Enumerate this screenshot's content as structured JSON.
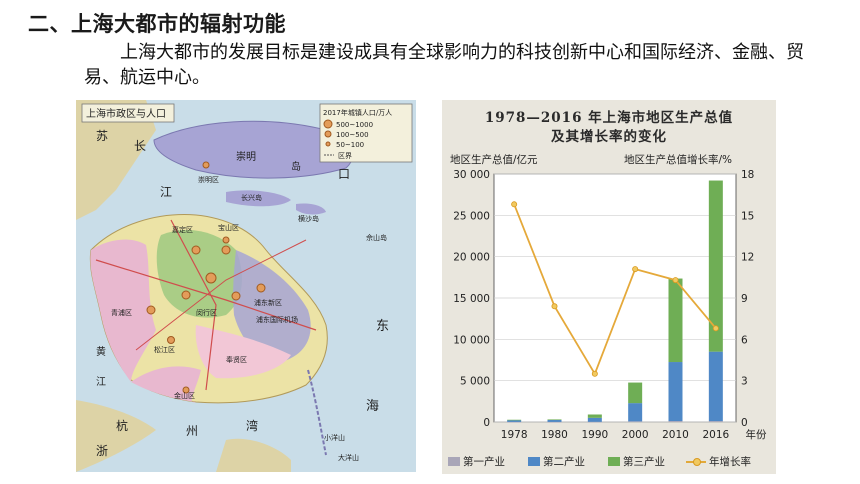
{
  "section": {
    "heading": "二、上海大都市的辐射功能",
    "paragraph": "上海大都市的发展目标是建设成具有全球影响力的科技创新中心和国际经济、金融、贸易、航运中心。"
  },
  "map": {
    "title": "上海市政区与人口",
    "legend": {
      "title": "2017年城镇人口/万人",
      "items": [
        "500~1000",
        "100~500",
        "50~100"
      ],
      "boundary": "区界"
    },
    "colors": {
      "water": "#c9dde8",
      "land": "#ece3a6",
      "pink": "#e8b8cf",
      "green": "#aacd86",
      "purple": "#a7a4d4",
      "city": "#e39c5a"
    },
    "labels": {
      "changxing": "长兴岛",
      "chongming": "崇明",
      "jiangdi": "江",
      "island": "岛",
      "jiading": "嘉定区",
      "baoshan": "宝山区",
      "qingpu": "青浦区",
      "songjiang": "松江区",
      "minhang": "闵行区",
      "pudong": "浦东新区",
      "pudong_airport": "浦东国际机场",
      "fengxian": "奉贤区",
      "jinshan": "金山区",
      "hengsha": "横沙岛",
      "chongming_city": "崇明区",
      "huang": "黄",
      "jiang": "江",
      "sea": "海",
      "sea2": "海",
      "east": "东",
      "hang": "杭",
      "zhou": "州",
      "wan": "湾",
      "changjiang": "长",
      "xiaoyangshan": "小洋山",
      "dayangshan": "大洋山",
      "sheshan": "佘山岛",
      "mouth": "口",
      "yang": "洋",
      "jiangsu": "苏",
      "zhe": "浙",
      "river": "江"
    }
  },
  "chart_data": {
    "type": "bar",
    "title": "1978—2016 年上海市地区生产总值",
    "subtitle": "及其增长率的变化",
    "ylabel": "地区生产总值/亿元",
    "y2label": "地区生产总值增长率/%",
    "xlabel": "年份",
    "categories": [
      "1978",
      "1980",
      "1990",
      "2000",
      "2010",
      "2016"
    ],
    "ylim": [
      0,
      30000
    ],
    "y2lim": [
      0,
      18
    ],
    "yticks": [
      "30 000",
      "25 000",
      "20 000",
      "15 000",
      "10 000",
      "5 000",
      "0"
    ],
    "y2ticks": [
      "18",
      "15",
      "12",
      "9",
      "6",
      "3",
      "0"
    ],
    "stacked": true,
    "series": [
      {
        "name": "第一产业",
        "color": "#a9a6b8",
        "values": [
          11,
          10,
          22,
          76,
          114,
          110
        ]
      },
      {
        "name": "第二产业",
        "color": "#4f88c6",
        "values": [
          211,
          236,
          482,
          2208,
          7140,
          8400
        ]
      },
      {
        "name": "第三产业",
        "color": "#6fae55",
        "values": [
          51,
          65,
          404,
          2487,
          10100,
          20700
        ]
      }
    ],
    "line": {
      "name": "年增长率",
      "color": "#e5a93a",
      "values": [
        15.8,
        8.4,
        3.5,
        11.1,
        10.3,
        6.8
      ]
    },
    "legend_position": "bottom"
  }
}
